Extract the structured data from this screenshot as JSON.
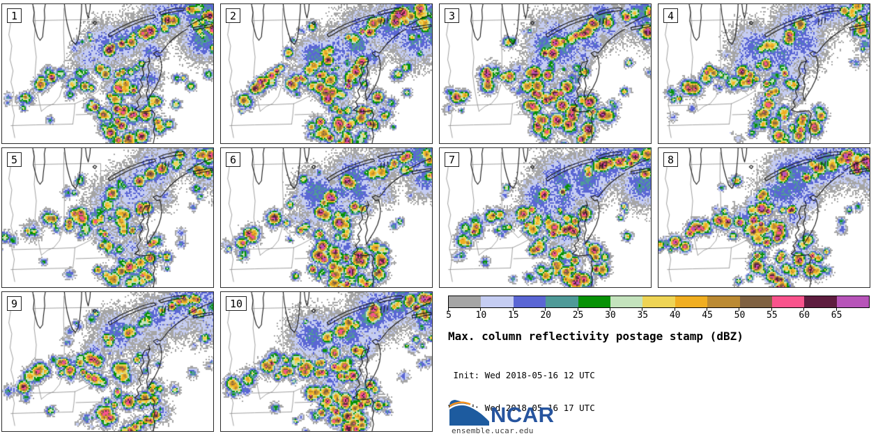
{
  "panels": [
    {
      "label": "1"
    },
    {
      "label": "2"
    },
    {
      "label": "3"
    },
    {
      "label": "4"
    },
    {
      "label": "5"
    },
    {
      "label": "6"
    },
    {
      "label": "7"
    },
    {
      "label": "8"
    },
    {
      "label": "9"
    },
    {
      "label": "10"
    }
  ],
  "colorbar": {
    "ticks": [
      "5",
      "10",
      "15",
      "20",
      "25",
      "30",
      "35",
      "40",
      "45",
      "50",
      "55",
      "60",
      "65"
    ],
    "colors": [
      "#a5a5a5",
      "#c5cdf2",
      "#5a66d4",
      "#4f9a98",
      "#079106",
      "#c4e3bd",
      "#eed455",
      "#f0ae21",
      "#bb8a33",
      "#7f6141",
      "#f9538c",
      "#5e1d3f",
      "#b754b9"
    ]
  },
  "legend": {
    "title": "Max. column reflectivity postage stamp (dBZ)",
    "init_line": " Init: Wed 2018-05-16 12 UTC",
    "valid_line": "Valid: Wed 2018-05-16 17 UTC"
  },
  "branding": {
    "name": "NCAR",
    "url": "ensemble.ucar.edu",
    "blue": "#1d5b9f",
    "orange": "#f6921e",
    "text_color": "#26549e",
    "url_color": "#3c3c3c"
  },
  "map": {
    "background": "#ffffff",
    "state_line_color": "#8f8f8f",
    "coast_color": "#141414",
    "panel_border_color": "#2b2b2b"
  }
}
